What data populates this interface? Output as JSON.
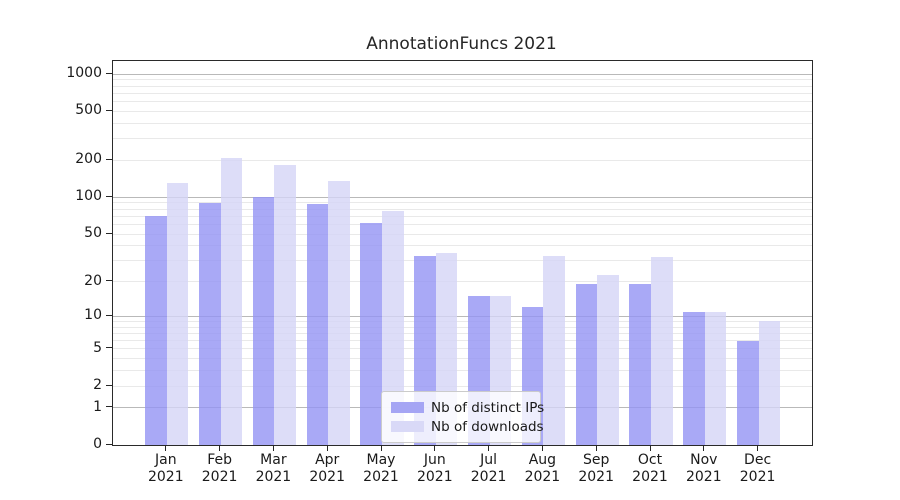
{
  "figure": {
    "title": "AnnotationFuncs 2021"
  },
  "chart_data": {
    "type": "bar",
    "title": "AnnotationFuncs 2021",
    "categories": [
      "Jan",
      "Feb",
      "Mar",
      "Apr",
      "May",
      "Jun",
      "Jul",
      "Aug",
      "Sep",
      "Oct",
      "Nov",
      "Dec"
    ],
    "category_year": "2021",
    "series": [
      {
        "name": "Nb of distinct IPs",
        "color": "#a5a5f4",
        "color_rgba": "rgba(148,148,244,0.8)",
        "values": [
          70,
          90,
          100,
          88,
          62,
          33,
          15,
          12,
          19,
          19,
          11,
          6
        ]
      },
      {
        "name": "Nb of downloads",
        "color": "#d9d9f7",
        "color_rgba": "rgba(212,212,246,0.8)",
        "values": [
          130,
          210,
          183,
          135,
          77,
          35,
          15,
          33,
          23,
          32,
          11,
          9
        ]
      }
    ],
    "yscale": "pseudo-log log10(value+1)",
    "ylim": [
      0,
      1280
    ],
    "y_ticks": [
      0,
      1,
      2,
      5,
      10,
      20,
      50,
      100,
      200,
      500,
      1000
    ],
    "major_gridlines": [
      1,
      10,
      100,
      1000
    ],
    "grid": "on",
    "legend_position": "lower center inside",
    "colors": {
      "major_grid": "#b9b9b9",
      "minor_grid": "#e9e9e9",
      "spine": "#2a2a2a"
    }
  }
}
